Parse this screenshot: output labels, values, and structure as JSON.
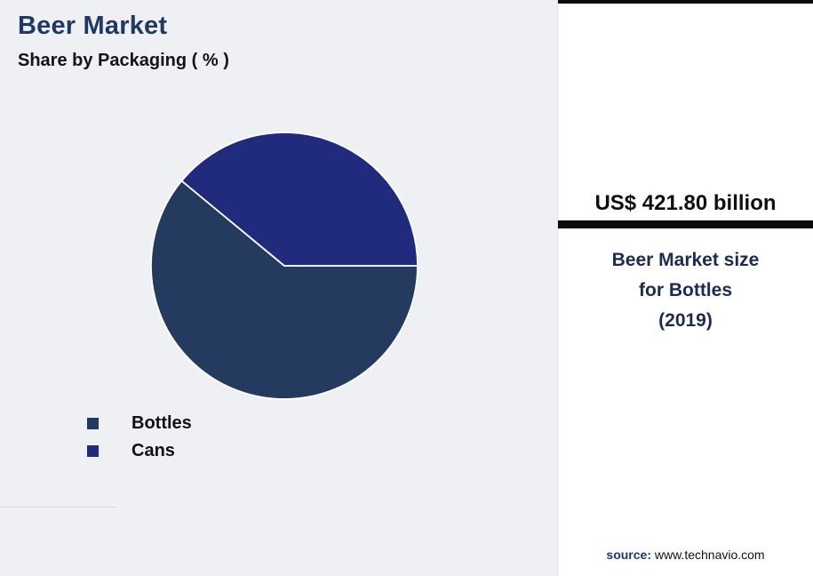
{
  "page": {
    "background": "#eff0f4",
    "panel_background": "#ffffff",
    "accent_navy": "#1F3864"
  },
  "header": {
    "title": "Beer Market",
    "subtitle": "Share by Packaging ( % )"
  },
  "chart_data": {
    "type": "pie",
    "title": "Beer Market — Share by Packaging ( % )",
    "labels": [
      "Bottles",
      "Cans"
    ],
    "values": [
      61,
      39
    ],
    "colors": [
      "#243A5E",
      "#212B7D"
    ],
    "start_angle_deg": 0,
    "direction": "clockwise",
    "legend_position": "bottom-left",
    "slice_border_color": "#ffffff",
    "note": "slice percentages are not labeled in the image; values estimated from arc angles (Bottles is the majority slice)"
  },
  "legend": {
    "items": [
      {
        "label": "Bottles",
        "color": "#243A5E"
      },
      {
        "label": "Cans",
        "color": "#212B7D"
      }
    ]
  },
  "stat_panel": {
    "value": "US$ 421.80 billion",
    "description_lines": [
      "Beer Market size",
      "for Bottles",
      "(2019)"
    ],
    "divider_color": "#0b0b0b"
  },
  "source": {
    "prefix": "source:",
    "text": " www.technavio.com"
  }
}
